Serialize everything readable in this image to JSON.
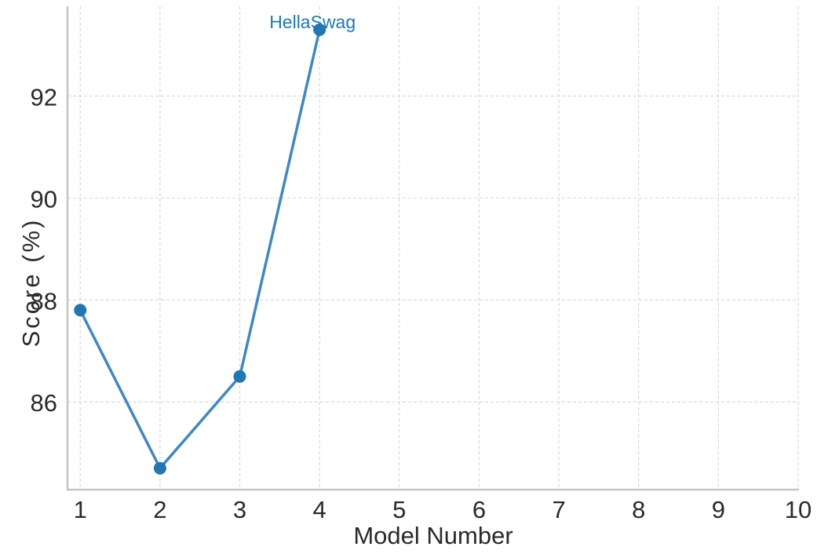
{
  "chart_data": {
    "type": "line",
    "x": [
      1,
      2,
      3,
      4
    ],
    "y": [
      87.8,
      84.7,
      86.5,
      93.3
    ],
    "annotation": {
      "text": "HellaSwag",
      "at_x": 4,
      "at_y": 93.3
    },
    "xlabel": "Model Number",
    "ylabel": "Score (%)",
    "xticks": [
      1,
      2,
      3,
      4,
      5,
      6,
      7,
      8,
      9,
      10
    ],
    "yticks": [
      86,
      88,
      90,
      92
    ],
    "xtick_labels": [
      "1",
      "2",
      "3",
      "4",
      "5",
      "6",
      "7",
      "8",
      "9",
      "10"
    ],
    "ytick_labels": [
      "86",
      "88",
      "90",
      "92"
    ],
    "xlim": [
      0.84,
      10.01
    ],
    "ylim": [
      84.28,
      93.76
    ],
    "grid": true,
    "grid_style": "dashed",
    "legend": false,
    "title": "",
    "colors": {
      "line": "#3f88c5",
      "marker": "#1f77b4",
      "annotation": "#1f77b4",
      "grid": "#d9d9d9",
      "spine": "#c4c4c4",
      "text": "#2a2a2a",
      "background": "#ffffff"
    }
  }
}
